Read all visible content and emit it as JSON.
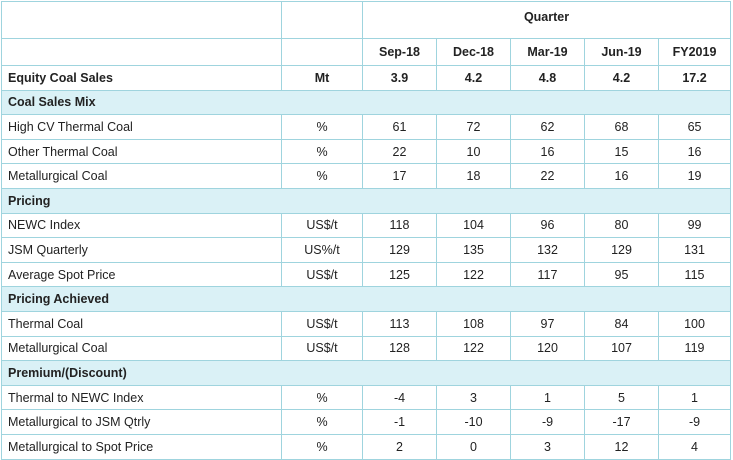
{
  "header": {
    "group_label": "Quarter",
    "periods": [
      "Sep-18",
      "Dec-18",
      "Mar-19",
      "Jun-19",
      "FY2019"
    ]
  },
  "equity": {
    "label": "Equity Coal Sales",
    "unit": "Mt",
    "values": [
      "3.9",
      "4.2",
      "4.8",
      "4.2",
      "17.2"
    ]
  },
  "sections": [
    {
      "title": "Coal Sales Mix",
      "rows": [
        {
          "label": "High CV Thermal Coal",
          "unit": "%",
          "values": [
            "61",
            "72",
            "62",
            "68",
            "65"
          ]
        },
        {
          "label": "Other Thermal Coal",
          "unit": "%",
          "values": [
            "22",
            "10",
            "16",
            "15",
            "16"
          ]
        },
        {
          "label": "Metallurgical Coal",
          "unit": "%",
          "values": [
            "17",
            "18",
            "22",
            "16",
            "19"
          ]
        }
      ]
    },
    {
      "title": "Pricing",
      "rows": [
        {
          "label": "NEWC Index",
          "unit": "US$/t",
          "values": [
            "118",
            "104",
            "96",
            "80",
            "99"
          ]
        },
        {
          "label": "JSM Quarterly",
          "unit": "US%/t",
          "values": [
            "129",
            "135",
            "132",
            "129",
            "131"
          ]
        },
        {
          "label": "Average Spot Price",
          "unit": "US$/t",
          "values": [
            "125",
            "122",
            "117",
            "95",
            "115"
          ]
        }
      ]
    },
    {
      "title": "Pricing Achieved",
      "rows": [
        {
          "label": "Thermal Coal",
          "unit": "US$/t",
          "values": [
            "113",
            "108",
            "97",
            "84",
            "100"
          ]
        },
        {
          "label": "Metallurgical Coal",
          "unit": "US$/t",
          "values": [
            "128",
            "122",
            "120",
            "107",
            "119"
          ]
        }
      ]
    },
    {
      "title": "Premium/(Discount)",
      "rows": [
        {
          "label": "Thermal to NEWC Index",
          "unit": "%",
          "values": [
            "-4",
            "3",
            "1",
            "5",
            "1"
          ]
        },
        {
          "label": "Metallurgical to JSM Qtrly",
          "unit": "%",
          "values": [
            "-1",
            "-10",
            "-9",
            "-17",
            "-9"
          ]
        },
        {
          "label": "Metallurgical to Spot Price",
          "unit": "%",
          "values": [
            "2",
            "0",
            "3",
            "12",
            "4"
          ]
        }
      ]
    }
  ]
}
